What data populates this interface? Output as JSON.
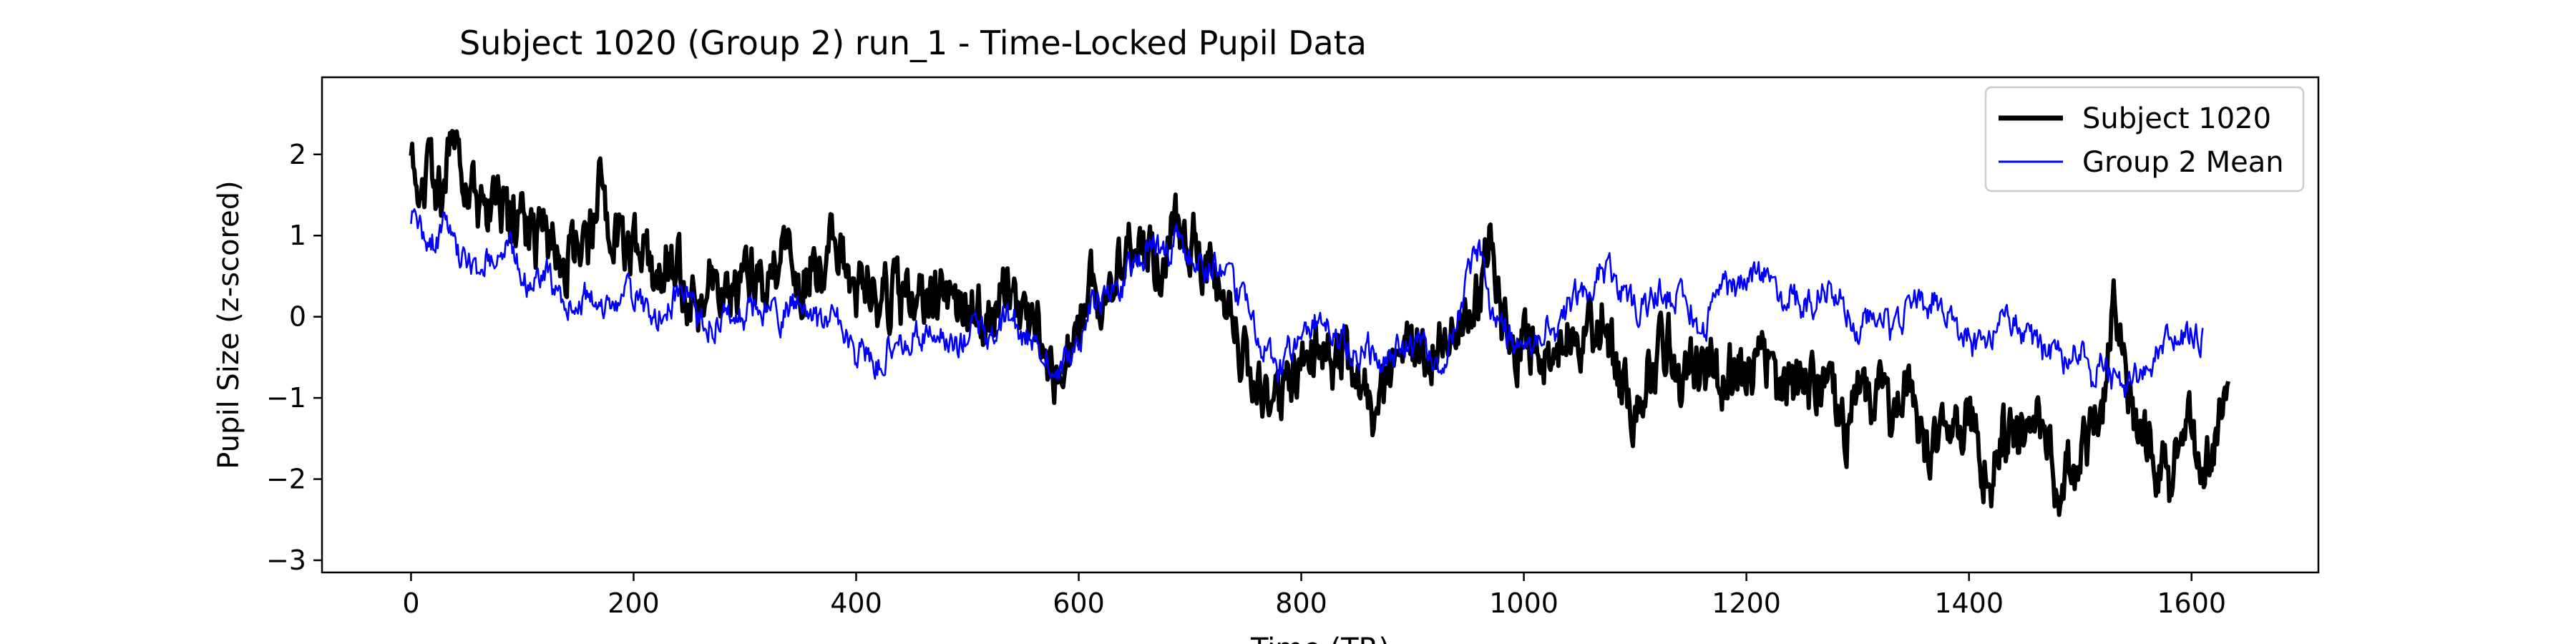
{
  "chart_data": {
    "type": "line",
    "title": "Subject 1020 (Group 2) run_1 - Time-Locked Pupil Data",
    "xlabel": "Time (TR)",
    "ylabel": "Pupil Size (z-scored)",
    "xlim": [
      -80,
      1714
    ],
    "ylim": [
      -3.15,
      2.95
    ],
    "x_ticks": [
      0,
      200,
      400,
      600,
      800,
      1000,
      1200,
      1400,
      1600
    ],
    "y_ticks": [
      -3,
      -2,
      -1,
      0,
      1,
      2
    ],
    "grid": false,
    "legend": "top-right",
    "n_points": 1634,
    "series": [
      {
        "name": "Subject 1020",
        "color": "#000000",
        "style": "thick",
        "anchor_x": [
          0,
          10,
          20,
          30,
          40,
          50,
          60,
          70,
          80,
          90,
          100,
          110,
          120,
          130,
          140,
          150,
          160,
          170,
          180,
          190,
          200,
          210,
          220,
          230,
          240,
          250,
          260,
          270,
          280,
          290,
          300,
          310,
          320,
          330,
          340,
          350,
          360,
          370,
          380,
          390,
          400,
          410,
          420,
          430,
          440,
          450,
          460,
          470,
          480,
          490,
          500,
          510,
          520,
          530,
          540,
          550,
          560,
          570,
          580,
          590,
          600,
          610,
          620,
          630,
          640,
          650,
          660,
          670,
          680,
          690,
          700,
          710,
          720,
          730,
          740,
          750,
          760,
          770,
          780,
          790,
          800,
          810,
          820,
          830,
          840,
          850,
          860,
          870,
          880,
          890,
          900,
          910,
          920,
          930,
          940,
          950,
          960,
          970,
          980,
          990,
          1000,
          1010,
          1020,
          1030,
          1040,
          1050,
          1060,
          1070,
          1080,
          1090,
          1100,
          1110,
          1120,
          1130,
          1140,
          1150,
          1160,
          1170,
          1180,
          1190,
          1200,
          1210,
          1220,
          1230,
          1240,
          1250,
          1260,
          1270,
          1280,
          1290,
          1300,
          1310,
          1320,
          1330,
          1340,
          1350,
          1360,
          1370,
          1380,
          1390,
          1400,
          1410,
          1420,
          1430,
          1440,
          1450,
          1460,
          1470,
          1480,
          1490,
          1500,
          1510,
          1520,
          1530,
          1540,
          1550,
          1560,
          1570,
          1580,
          1590,
          1600,
          1610,
          1620,
          1630
        ],
        "anchor_y": [
          1.9,
          1.85,
          1.6,
          1.5,
          2.5,
          1.7,
          1.3,
          1.2,
          1.4,
          1.1,
          1.3,
          0.9,
          1.0,
          0.8,
          0.7,
          0.9,
          0.8,
          1.6,
          1.0,
          0.9,
          0.8,
          0.7,
          0.6,
          0.7,
          0.6,
          0.3,
          0.1,
          0.5,
          0.3,
          0.2,
          0.6,
          0.4,
          0.3,
          0.6,
          0.7,
          0.5,
          0.6,
          0.4,
          0.9,
          0.6,
          0.3,
          0.5,
          0.1,
          0.3,
          0.2,
          0.4,
          0.1,
          0.2,
          0.5,
          0.1,
          0.3,
          0.1,
          -0.2,
          0.4,
          0.2,
          0.0,
          -0.1,
          -0.3,
          -0.9,
          -0.6,
          -0.2,
          0.4,
          0.3,
          0.5,
          0.6,
          0.9,
          0.8,
          0.7,
          0.9,
          1.1,
          1.0,
          0.8,
          0.5,
          0.1,
          -0.3,
          -0.6,
          -0.6,
          -0.9,
          -1.1,
          -1.0,
          -0.6,
          -0.4,
          -0.3,
          -0.6,
          -0.4,
          -0.7,
          -1.1,
          -1.2,
          -0.8,
          -0.6,
          -0.4,
          -0.5,
          -0.4,
          -0.1,
          -0.2,
          0.0,
          0.3,
          0.9,
          0.0,
          -0.2,
          -0.4,
          -0.2,
          -0.5,
          -0.5,
          -0.3,
          -0.3,
          -0.3,
          0.0,
          -0.5,
          -0.9,
          -1.1,
          -0.8,
          -0.5,
          -0.3,
          -0.8,
          -0.7,
          -0.8,
          -0.6,
          -0.8,
          -0.5,
          -0.8,
          -0.5,
          -0.5,
          -1.0,
          -0.9,
          -0.8,
          -0.9,
          -0.8,
          -1.1,
          -1.3,
          -1.0,
          -1.1,
          -0.9,
          -1.2,
          -0.9,
          -1.0,
          -1.6,
          -1.5,
          -1.0,
          -1.3,
          -1.1,
          -1.6,
          -2.1,
          -1.4,
          -1.5,
          -1.6,
          -1.3,
          -1.5,
          -2.3,
          -1.9,
          -1.8,
          -1.5,
          -1.2,
          0.3,
          -0.8,
          -1.3,
          -1.6,
          -1.8,
          -2.1,
          -1.5,
          -1.3,
          -1.8,
          -1.5,
          -1.1
        ],
        "jitter": 0.32
      },
      {
        "name": "Group 2 Mean",
        "color": "#0000ff",
        "style": "thin",
        "anchor_x": [
          0,
          10,
          20,
          30,
          40,
          50,
          60,
          70,
          80,
          90,
          100,
          110,
          120,
          130,
          140,
          150,
          160,
          170,
          180,
          190,
          200,
          210,
          220,
          230,
          240,
          250,
          260,
          270,
          280,
          290,
          300,
          310,
          320,
          330,
          340,
          350,
          360,
          370,
          380,
          390,
          400,
          410,
          420,
          430,
          440,
          450,
          460,
          470,
          480,
          490,
          500,
          510,
          520,
          530,
          540,
          550,
          560,
          570,
          580,
          590,
          600,
          610,
          620,
          630,
          640,
          650,
          660,
          670,
          680,
          690,
          700,
          710,
          720,
          730,
          740,
          750,
          760,
          770,
          780,
          790,
          800,
          810,
          820,
          830,
          840,
          850,
          860,
          870,
          880,
          890,
          900,
          910,
          920,
          930,
          940,
          950,
          960,
          970,
          980,
          990,
          1000,
          1010,
          1020,
          1030,
          1040,
          1050,
          1060,
          1070,
          1080,
          1090,
          1100,
          1110,
          1120,
          1130,
          1140,
          1150,
          1160,
          1170,
          1180,
          1190,
          1200,
          1210,
          1220,
          1230,
          1240,
          1250,
          1260,
          1270,
          1280,
          1290,
          1300,
          1310,
          1320,
          1330,
          1340,
          1350,
          1360,
          1370,
          1380,
          1390,
          1400,
          1410,
          1420,
          1430,
          1440,
          1450,
          1460,
          1470,
          1480,
          1490,
          1500,
          1510,
          1520,
          1530,
          1540,
          1550,
          1560,
          1570,
          1580,
          1590,
          1600,
          1610,
          1620,
          1630
        ],
        "anchor_y": [
          1.3,
          1.0,
          0.9,
          1.1,
          0.8,
          0.7,
          0.6,
          0.8,
          0.7,
          0.9,
          0.5,
          0.4,
          0.6,
          0.3,
          0.1,
          0.2,
          0.3,
          0.2,
          0.1,
          0.2,
          0.3,
          0.1,
          0.0,
          0.1,
          0.3,
          0.2,
          -0.1,
          -0.1,
          0.0,
          -0.1,
          0.0,
          0.2,
          0.1,
          -0.1,
          0.1,
          0.2,
          0.1,
          -0.2,
          0.0,
          -0.2,
          -0.5,
          -0.4,
          -0.6,
          -0.3,
          -0.2,
          -0.3,
          -0.2,
          -0.1,
          -0.2,
          -0.4,
          -0.3,
          -0.1,
          -0.4,
          -0.1,
          0.0,
          -0.2,
          -0.3,
          -0.4,
          -0.6,
          -0.5,
          -0.3,
          0.1,
          0.2,
          0.3,
          0.4,
          0.6,
          0.8,
          0.9,
          0.7,
          1.0,
          0.8,
          0.6,
          0.7,
          0.4,
          0.3,
          0.1,
          -0.2,
          -0.5,
          -0.7,
          -0.4,
          -0.2,
          -0.1,
          0.0,
          -0.2,
          -0.3,
          -0.5,
          -0.4,
          -0.6,
          -0.5,
          -0.4,
          -0.3,
          -0.4,
          -0.6,
          -0.5,
          -0.1,
          0.5,
          0.9,
          0.1,
          -0.1,
          -0.3,
          -0.3,
          -0.3,
          -0.1,
          -0.2,
          0.1,
          0.3,
          0.4,
          0.6,
          0.5,
          0.3,
          0.1,
          0.2,
          0.3,
          0.2,
          0.3,
          0.1,
          -0.2,
          0.1,
          0.4,
          0.3,
          0.5,
          0.6,
          0.4,
          0.2,
          0.3,
          0.1,
          0.2,
          0.4,
          0.3,
          0.1,
          -0.1,
          0.0,
          0.2,
          -0.2,
          0.0,
          0.2,
          0.1,
          0.3,
          0.0,
          -0.2,
          -0.3,
          -0.4,
          -0.3,
          0.1,
          0.0,
          -0.2,
          -0.3,
          -0.5,
          -0.4,
          -0.6,
          -0.3,
          -0.7,
          -0.5,
          -0.8,
          -0.9,
          -0.7,
          -0.6,
          -0.4,
          -0.3,
          -0.2,
          -0.2,
          -0.3
        ],
        "jitter": 0.16
      }
    ]
  }
}
